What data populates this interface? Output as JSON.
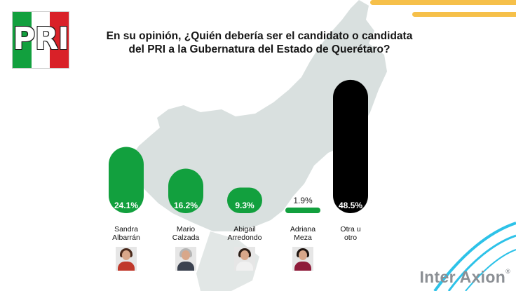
{
  "header": {
    "logo_text": "PRI",
    "question": "En su opinión, ¿Quién debería ser el candidato o candidata del PRI a la Gubernatura del Estado de Querétaro?"
  },
  "brand": {
    "name": "Inter Axion",
    "registered": "®"
  },
  "colors": {
    "green": "#12a03e",
    "black": "#000000",
    "map": "#d9e0df",
    "yellow_stripe": "#f6c04a",
    "cyan_swirl": "#2dc2e8"
  },
  "chart_data": {
    "type": "bar",
    "categories": [
      "Sandra Albarrán",
      "Mario Calzada",
      "Abigail Arredondo",
      "Adriana Meza",
      "Otra u otro"
    ],
    "values": [
      24.1,
      16.2,
      9.3,
      1.9,
      48.5
    ],
    "value_labels": [
      "24.1%",
      "16.2%",
      "9.3%",
      "1.9%",
      "48.5%"
    ],
    "label_lines": [
      [
        "Sandra",
        "Albarrán"
      ],
      [
        "Mario",
        "Calzada"
      ],
      [
        "Abigail",
        "Arredondo"
      ],
      [
        "Adriana",
        "Meza"
      ],
      [
        "Otra u",
        "otro"
      ]
    ],
    "bar_colors": [
      "#12a03e",
      "#12a03e",
      "#12a03e",
      "#12a03e",
      "#000000"
    ],
    "unit": "%",
    "title": "",
    "xlabel": "",
    "ylabel": "",
    "ylim": [
      0,
      50
    ],
    "grid": false,
    "legend": "none"
  }
}
